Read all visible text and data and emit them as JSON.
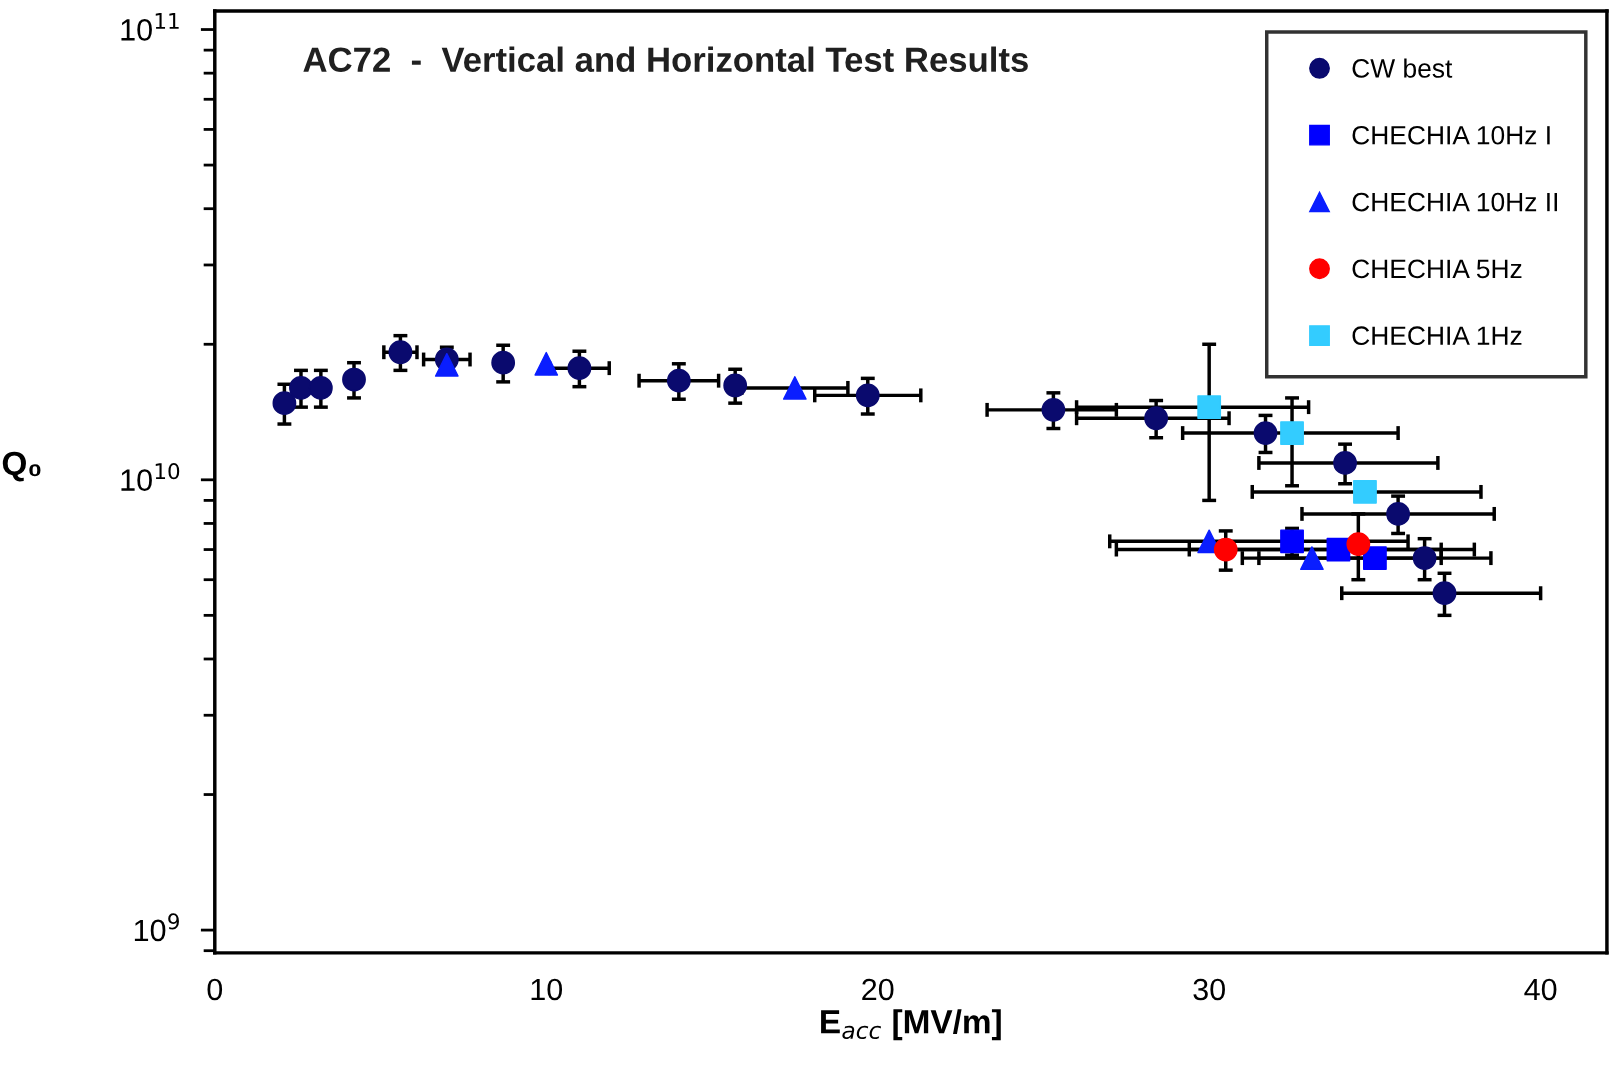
{
  "chart_data": {
    "type": "scatter",
    "title": "AC72  -  Vertical and Horizontal Test Results",
    "xlabel": "E$_{acc}$ [MV/m]",
    "ylabel": "Q₀",
    "log": "y",
    "xlim": [
      0,
      42
    ],
    "xticks": [
      0,
      10,
      20,
      30,
      40
    ],
    "ylim": [
      890000000.0,
      110000000000.0
    ],
    "yticks": [
      {
        "value": 1000000000.0,
        "label": "10$^{9}$"
      },
      {
        "value": 10000000000.0,
        "label": "10$^{10}$"
      },
      {
        "value": 100000000000.0,
        "label": "10$^{11}$"
      }
    ],
    "grid": false,
    "legend": "top right",
    "series": [
      {
        "name": "CW best",
        "color": "#0a0a6e",
        "marker": "circle",
        "x": [
          2.1,
          2.6,
          3.2,
          4.2,
          5.6,
          7.0,
          8.7,
          11.0,
          14.0,
          15.7,
          19.7,
          25.3,
          28.4,
          31.7,
          34.1,
          35.7,
          36.5,
          37.1
        ],
        "values": [
          14800000000.0,
          16000000000.0,
          16000000000.0,
          16700000000.0,
          19200000000.0,
          18500000000.0,
          18200000000.0,
          17700000000.0,
          16600000000.0,
          16200000000.0,
          15400000000.0,
          14300000000.0,
          13700000000.0,
          12700000000.0,
          10900000000.0,
          8400000000.0,
          6700000000.0,
          5600000000.0
        ],
        "errors": [
          1500000000.0,
          1500000000.0,
          1500000000.0,
          1500000000.0,
          1700000000.0,
          1200000000.0,
          1700000000.0,
          1600000000.0,
          1500000000.0,
          1400000000.0,
          1400000000.0,
          1300000000.0,
          1300000000.0,
          1200000000.0,
          1100000000.0,
          800000000.0,
          700000000.0,
          600000000.0
        ],
        "xerrors": [
          null,
          null,
          null,
          null,
          0.5,
          0.7,
          null,
          0.9,
          1.2,
          null,
          1.6,
          [
            23.3,
            27.2
          ],
          [
            26.0,
            30.6
          ],
          [
            29.2,
            35.7
          ],
          [
            31.5,
            36.9
          ],
          [
            32.8,
            38.6
          ],
          [
            31.5,
            38.5
          ],
          [
            34.0,
            40.0
          ]
        ]
      },
      {
        "name": "CHECHIA 10Hz I",
        "color": "#0000ff",
        "marker": "square",
        "x": [
          32.5,
          33.9,
          35.0
        ],
        "values": [
          7300000000.0,
          7000000000.0,
          6700000000.0
        ],
        "errors": [
          500000000.0,
          null,
          null
        ],
        "xerrors": [
          null,
          [
            29.4,
            38.0
          ],
          null
        ]
      },
      {
        "name": "CHECHIA 10Hz II",
        "color": "#0a1eff",
        "marker": "triangle",
        "x": [
          7.0,
          10.0,
          17.5,
          30.0,
          33.1
        ],
        "values": [
          18000000000.0,
          18100000000.0,
          16000000000.0,
          7300000000.0,
          6700000000.0
        ],
        "xerrors": [
          null,
          null,
          1.6,
          [
            27.0,
            36.0
          ],
          [
            31.0,
            37.0
          ]
        ]
      },
      {
        "name": "CHECHIA 5Hz",
        "color": "#ff0000",
        "marker": "circle",
        "x": [
          30.5,
          34.5
        ],
        "values": [
          7000000000.0,
          7200000000.0
        ],
        "errors": [
          700000000.0,
          1200000000.0
        ],
        "xerrors": [
          [
            27.2,
            37.0
          ],
          null
        ]
      },
      {
        "name": "CHECHIA 1Hz",
        "color": "#33ccff",
        "marker": "square",
        "x": [
          30.0,
          32.5,
          34.7
        ],
        "values": [
          14500000000.0,
          12700000000.0,
          9400000000.0
        ],
        "errors": [
          [
            9000000000.0,
            20000000000.0
          ],
          [
            9700000000.0,
            15200000000.0
          ],
          null
        ],
        "xerrors": [
          [
            26.0,
            33.0
          ],
          null,
          [
            31.3,
            38.2
          ]
        ]
      }
    ]
  }
}
